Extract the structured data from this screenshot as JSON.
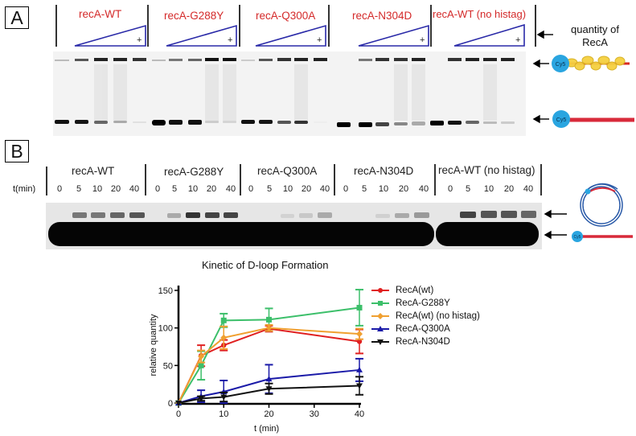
{
  "panel_a": {
    "letter": "A",
    "groups": [
      {
        "label": "recA-WT"
      },
      {
        "label": "recA-G288Y"
      },
      {
        "label": "recA-Q300A"
      },
      {
        "label": "recA-N304D"
      },
      {
        "label": "recA-WT (no histag)"
      }
    ],
    "triangle_mark": "+",
    "gradient_label_line1": "quantity of",
    "gradient_label_line2": "RecA",
    "schematic_top_label": "Cy5",
    "schematic_bottom_label": "Cy5",
    "label_color": "#d42a2a",
    "triangle_color": "#2a2aa8"
  },
  "panel_b": {
    "letter": "B",
    "time_axis_label": "t(min)",
    "groups": [
      {
        "label": "recA-WT",
        "times": [
          "0",
          "5",
          "10",
          "20",
          "40"
        ]
      },
      {
        "label": "recA-G288Y",
        "times": [
          "0",
          "5",
          "10",
          "20",
          "40"
        ]
      },
      {
        "label": "recA-Q300A",
        "times": [
          "0",
          "5",
          "10",
          "20",
          "40"
        ]
      },
      {
        "label": "recA-N304D",
        "times": [
          "0",
          "5",
          "10",
          "20",
          "40"
        ]
      },
      {
        "label": "recA-WT (no histag)",
        "times": [
          "0",
          "5",
          "10",
          "20",
          "40"
        ]
      }
    ],
    "schematic_label": "Cy5"
  },
  "chart_data": {
    "type": "line",
    "title": "Kinetic of D-loop Formation",
    "xlabel": "t (min)",
    "ylabel": "relative quantity",
    "x": [
      0,
      5,
      10,
      20,
      40
    ],
    "xticks": [
      0,
      10,
      20,
      30,
      40
    ],
    "yticks": [
      0,
      50,
      100,
      150
    ],
    "xlim": [
      0,
      40
    ],
    "ylim": [
      0,
      160
    ],
    "grid": false,
    "legend_position": "right",
    "series": [
      {
        "name": "RecA(wt)",
        "color": "#e02020",
        "marker": "circle",
        "values": [
          0,
          63,
          77,
          99,
          82
        ],
        "errors": [
          0,
          14,
          7,
          4,
          16
        ]
      },
      {
        "name": "RecA-G288Y",
        "color": "#3cbf6a",
        "marker": "square",
        "values": [
          0,
          50,
          110,
          111,
          127
        ],
        "errors": [
          0,
          19,
          9,
          15,
          24
        ]
      },
      {
        "name": "RecA(wt) (no histag)",
        "color": "#f0a030",
        "marker": "diamond",
        "values": [
          0,
          62,
          87,
          100,
          92
        ],
        "errors": [
          0,
          8,
          15,
          4,
          7
        ]
      },
      {
        "name": "RecA-Q300A",
        "color": "#1a1aa8",
        "marker": "triangle-up",
        "values": [
          0,
          9,
          15,
          32,
          44
        ],
        "errors": [
          0,
          8,
          15,
          19,
          15
        ]
      },
      {
        "name": "RecA-N304D",
        "color": "#111111",
        "marker": "triangle-down",
        "values": [
          0,
          6,
          8,
          19,
          23
        ],
        "errors": [
          0,
          3,
          6,
          7,
          12
        ]
      }
    ]
  }
}
